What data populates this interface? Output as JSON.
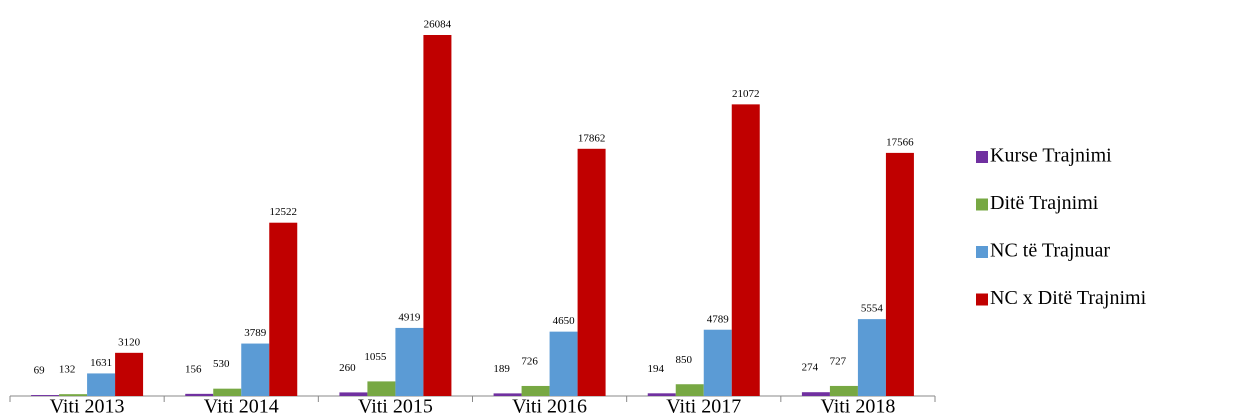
{
  "chart_data": {
    "type": "bar",
    "categories": [
      "Viti 2013",
      "Viti 2014",
      "Viti 2015",
      "Viti 2016",
      "Viti 2017",
      "Viti 2018"
    ],
    "series": [
      {
        "name": "Kurse Trajnimi",
        "color": "#7030a0",
        "values": [
          69,
          156,
          260,
          189,
          194,
          274
        ]
      },
      {
        "name": "Ditë Trajnimi",
        "color": "#77a843",
        "values": [
          132,
          530,
          1055,
          726,
          850,
          727
        ]
      },
      {
        "name": "NC të Trajnuar",
        "color": "#5b9bd5",
        "values": [
          1631,
          3789,
          4919,
          4650,
          4789,
          5554
        ]
      },
      {
        "name": "NC x Ditë Trajnimi",
        "color": "#c00000",
        "values": [
          3120,
          12522,
          26084,
          17862,
          21072,
          17566
        ]
      }
    ],
    "legend": "right"
  }
}
